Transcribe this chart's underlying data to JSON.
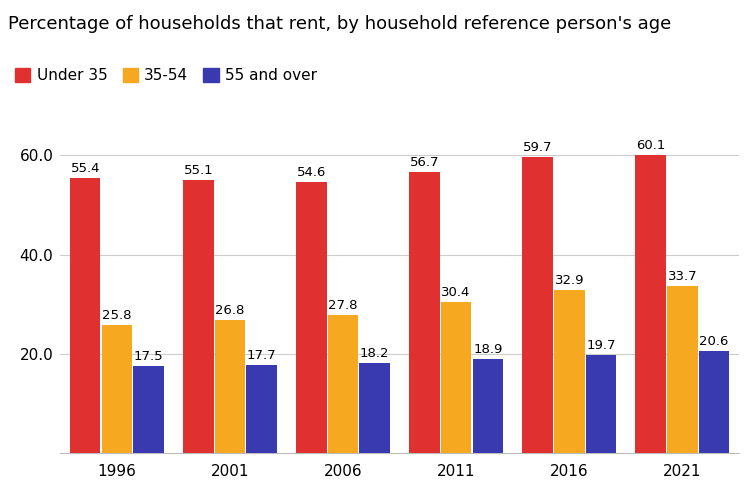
{
  "title": "Percentage of households that rent, by household reference person's age",
  "years": [
    1996,
    2001,
    2006,
    2011,
    2016,
    2021
  ],
  "series": {
    "Under 35": {
      "values": [
        55.4,
        55.1,
        54.6,
        56.7,
        59.7,
        60.1
      ],
      "color": "#e03030"
    },
    "35-54": {
      "values": [
        25.8,
        26.8,
        27.8,
        30.4,
        32.9,
        33.7
      ],
      "color": "#f5a820"
    },
    "55 and over": {
      "values": [
        17.5,
        17.7,
        18.2,
        18.9,
        19.7,
        20.6
      ],
      "color": "#3a3ab0"
    }
  },
  "ylim": [
    0,
    67
  ],
  "yticks": [
    20.0,
    40.0,
    60.0
  ],
  "bar_width": 0.28,
  "background_color": "#ffffff",
  "grid_color": "#cccccc",
  "title_fontsize": 13,
  "tick_fontsize": 11,
  "legend_fontsize": 11,
  "value_fontsize": 9.5
}
